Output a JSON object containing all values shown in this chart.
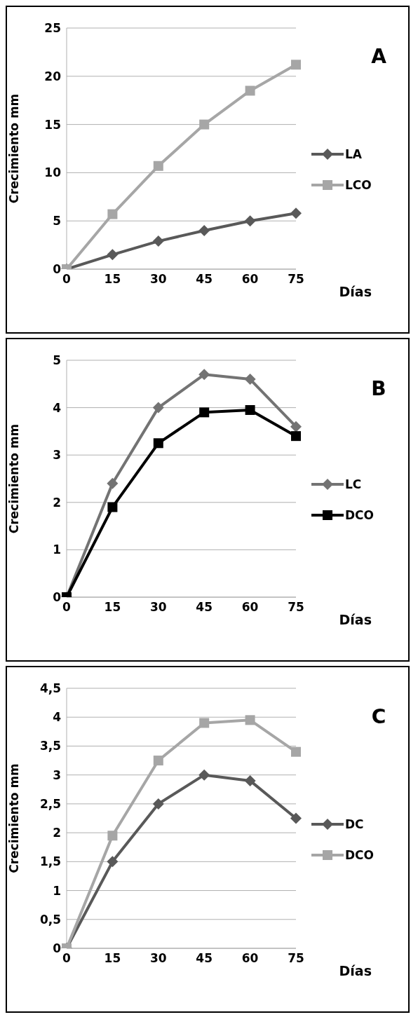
{
  "chart_data": [
    {
      "type": "line",
      "annotations": [
        "A"
      ],
      "xlabel": "Días",
      "ylabel": "Crecimiento mm",
      "categories": [
        "0",
        "15",
        "30",
        "45",
        "60",
        "75"
      ],
      "series": [
        {
          "name": "LA",
          "color": "#595959",
          "marker": "diamond",
          "values": [
            0,
            1.5,
            2.9,
            4.0,
            5.0,
            5.8
          ]
        },
        {
          "name": "LCO",
          "color": "#a6a6a6",
          "marker": "square",
          "values": [
            0,
            5.7,
            10.7,
            15.0,
            18.5,
            21.2
          ]
        }
      ],
      "ylim": [
        0,
        25
      ],
      "yticks": [
        0,
        5,
        10,
        15,
        20,
        25
      ],
      "grid": "y",
      "legend": "right"
    },
    {
      "type": "line",
      "annotations": [
        "B"
      ],
      "xlabel": "Días",
      "ylabel": "Crecimiento mm",
      "categories": [
        "0",
        "15",
        "30",
        "45",
        "60",
        "75"
      ],
      "series": [
        {
          "name": "LC",
          "color": "#737373",
          "marker": "diamond",
          "values": [
            0,
            2.4,
            4.0,
            4.7,
            4.6,
            3.6
          ]
        },
        {
          "name": "DCO",
          "color": "#000000",
          "marker": "square",
          "values": [
            0,
            1.9,
            3.25,
            3.9,
            3.95,
            3.4
          ]
        }
      ],
      "ylim": [
        0,
        5
      ],
      "yticks": [
        0,
        1,
        2,
        3,
        4,
        5
      ],
      "grid": "y",
      "legend": "right"
    },
    {
      "type": "line",
      "annotations": [
        "C"
      ],
      "xlabel": "Días",
      "ylabel": "Crecimiento mm",
      "categories": [
        "0",
        "15",
        "30",
        "45",
        "60",
        "75"
      ],
      "series": [
        {
          "name": "DC",
          "color": "#595959",
          "marker": "diamond",
          "values": [
            0,
            1.5,
            2.5,
            3.0,
            2.9,
            2.25
          ]
        },
        {
          "name": "DCO",
          "color": "#a6a6a6",
          "marker": "square",
          "values": [
            0,
            1.95,
            3.25,
            3.9,
            3.95,
            3.4
          ]
        }
      ],
      "ylim": [
        0,
        4.5
      ],
      "yticks": [
        0,
        {
          "value": 0.5,
          "label": "0,5"
        },
        1,
        {
          "value": 1.5,
          "label": "1,5"
        },
        2,
        {
          "value": 2.5,
          "label": "2,5"
        },
        3,
        {
          "value": 3.5,
          "label": "3,5"
        },
        4,
        {
          "value": 4.5,
          "label": "4,5"
        }
      ],
      "grid": "y",
      "legend": "right"
    }
  ]
}
